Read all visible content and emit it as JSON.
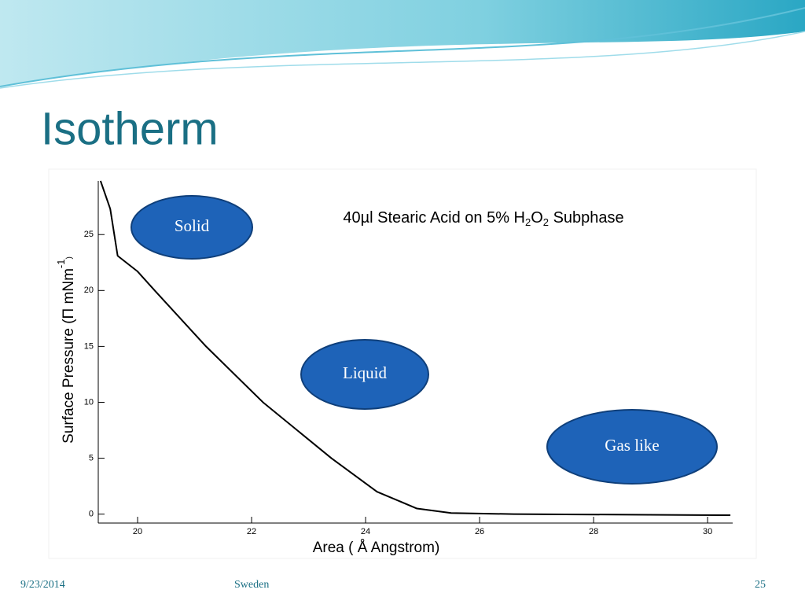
{
  "slide": {
    "title": "Isotherm",
    "footer": {
      "date": "9/23/2014",
      "place": "Sweden",
      "page": "25"
    }
  },
  "chart_data": {
    "type": "line",
    "title_parts": [
      "40µl Stearic Acid on 5% H",
      "2",
      "O",
      "2",
      " Subphase"
    ],
    "x_label": "Area ( Å Angstrom)",
    "y_label_parts": [
      "Surface Pressure (Π mNm",
      "-1",
      ")"
    ],
    "annotations": [
      "Solid",
      "Liquid",
      "Gas like"
    ],
    "x": [
      19.35,
      19.52,
      19.65,
      20.0,
      20.3,
      21.2,
      22.2,
      23.4,
      24.2,
      24.9,
      25.5,
      26.6,
      30.4
    ],
    "series": [
      {
        "name": "Isotherm",
        "color": "#000000",
        "values": [
          29.8,
          27.3,
          23.1,
          21.7,
          20,
          15,
          10,
          5,
          2,
          0.5,
          0.1,
          0,
          -0.1
        ]
      }
    ],
    "xlim": [
      19.31,
      30.44
    ],
    "ylim": [
      -0.8,
      29.8
    ],
    "xticks": [
      20,
      22,
      24,
      26,
      28,
      30
    ],
    "yticks": [
      0,
      5,
      10,
      15,
      20,
      25
    ],
    "grid": false
  }
}
